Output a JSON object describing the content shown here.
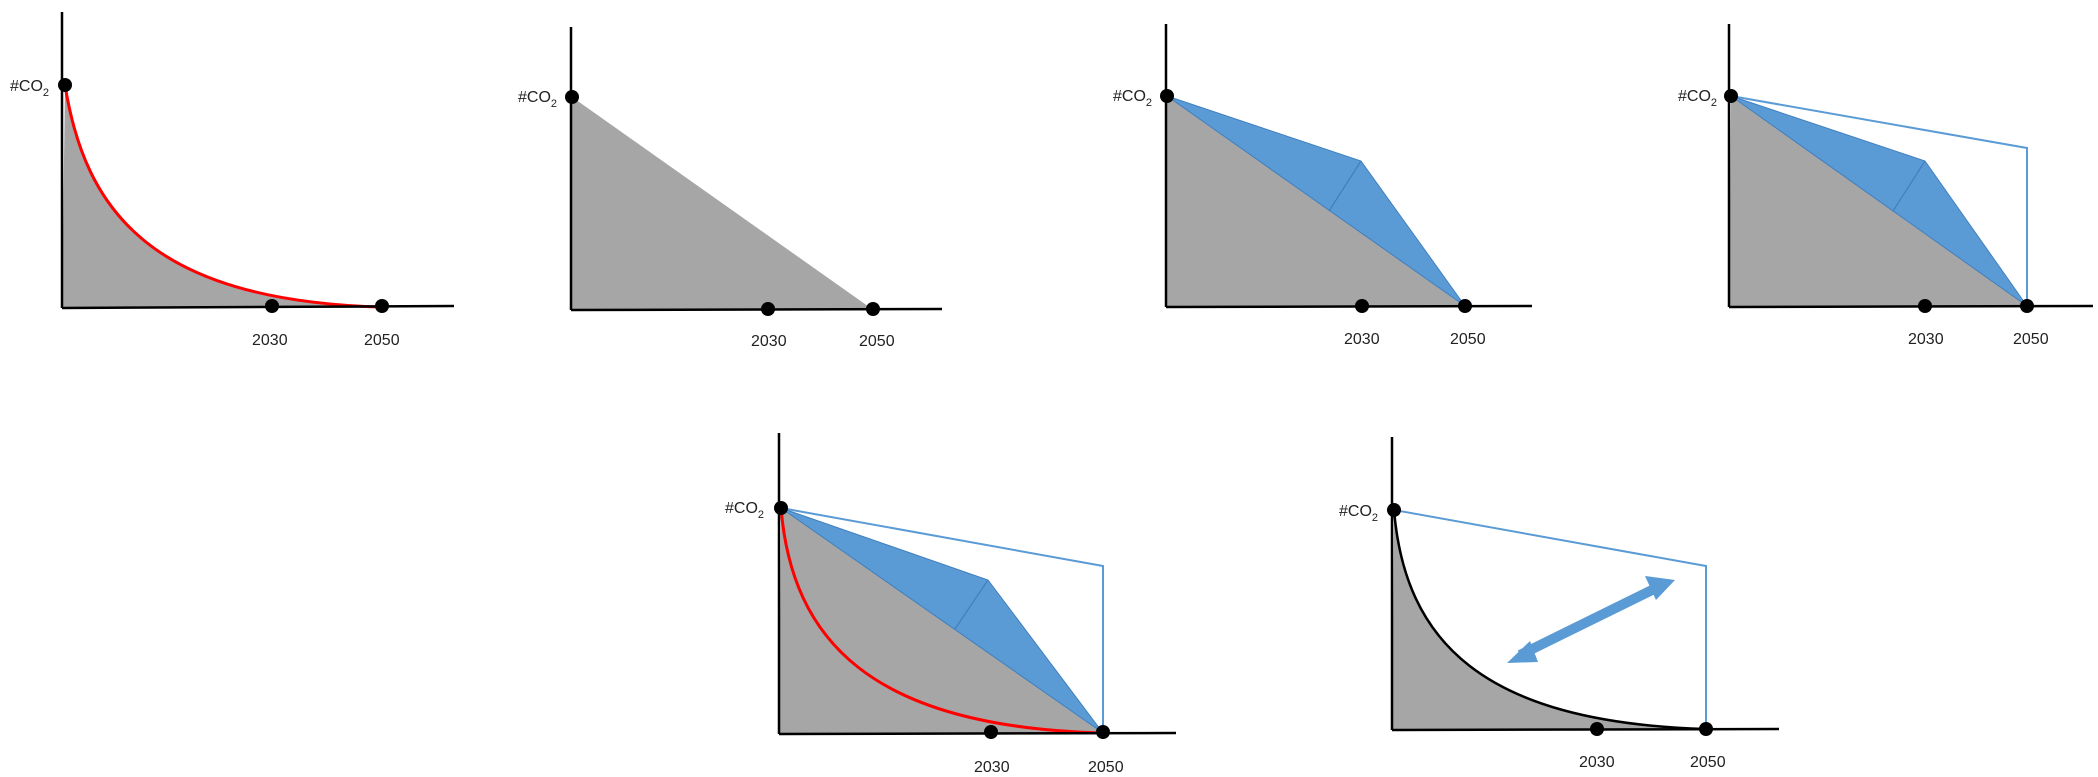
{
  "panels": [
    {
      "id": "panel-1",
      "co2_label": "#CO",
      "co2_subscript": "2",
      "tick_labels": [
        "2030",
        "2050"
      ]
    },
    {
      "id": "panel-2",
      "co2_label": "#CO",
      "co2_subscript": "2",
      "tick_labels": [
        "2030",
        "2050"
      ]
    },
    {
      "id": "panel-3",
      "co2_label": "#CO",
      "co2_subscript": "2",
      "tick_labels": [
        "2030",
        "2050"
      ]
    },
    {
      "id": "panel-4",
      "co2_label": "#CO",
      "co2_subscript": "2",
      "tick_labels": [
        "2030",
        "2050"
      ]
    },
    {
      "id": "panel-5",
      "co2_label": "#CO",
      "co2_subscript": "2",
      "tick_labels": [
        "2030",
        "2050"
      ]
    },
    {
      "id": "panel-6",
      "co2_label": "#CO",
      "co2_subscript": "2",
      "tick_labels": [
        "2030",
        "2050"
      ]
    }
  ],
  "colors": {
    "gray_fill": "#a6a6a6",
    "red_curve": "#ff0000",
    "blue_fill": "#5b9bd5",
    "blue_line": "#5b9bd5",
    "axis": "#000000"
  }
}
